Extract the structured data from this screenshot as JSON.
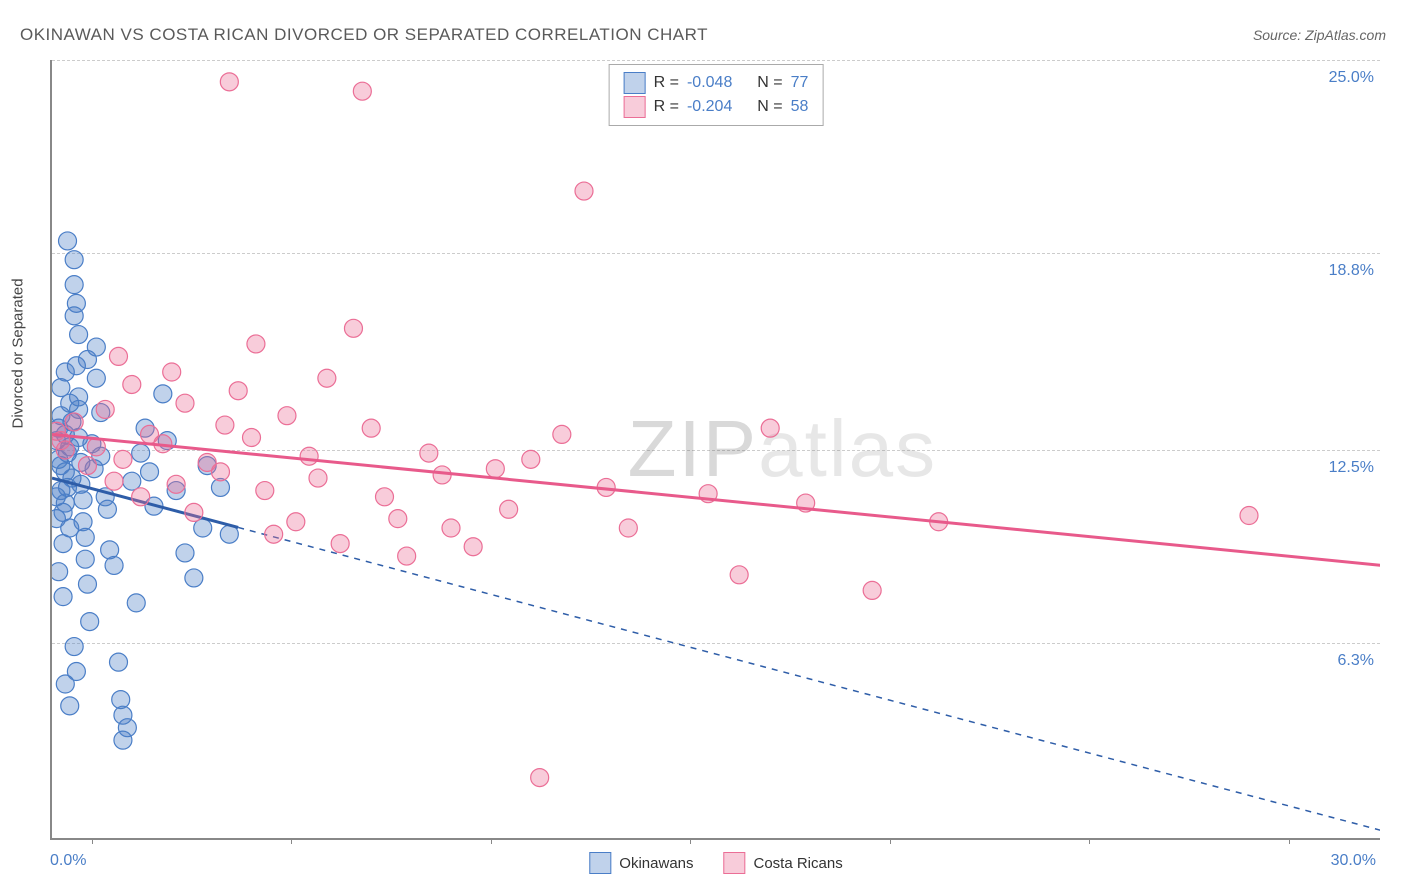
{
  "title": "OKINAWAN VS COSTA RICAN DIVORCED OR SEPARATED CORRELATION CHART",
  "source": "Source: ZipAtlas.com",
  "watermark_a": "ZIP",
  "watermark_b": "atlas",
  "ylabel": "Divorced or Separated",
  "chart": {
    "type": "scatter",
    "xlim": [
      0,
      30
    ],
    "ylim": [
      0,
      25
    ],
    "xtick_positions_pct": [
      3,
      18,
      33,
      48,
      63,
      78,
      93
    ],
    "grid_lines_y": [
      6.3,
      12.5,
      18.8,
      25.0
    ],
    "ytick_labels": [
      "6.3%",
      "12.5%",
      "18.8%",
      "25.0%"
    ],
    "xlabel_min": "0.0%",
    "xlabel_max": "30.0%",
    "background_color": "#ffffff",
    "grid_color": "#cccccc",
    "axis_color": "#888888",
    "marker_radius": 9,
    "marker_opacity": 0.55,
    "series": [
      {
        "name": "Okinawans",
        "color_fill": "rgba(74,126,199,0.35)",
        "color_stroke": "#4a7ec7",
        "R": "-0.048",
        "N": "77",
        "trend": {
          "x1": 0,
          "y1": 11.6,
          "x2": 30,
          "y2": 0.3,
          "solid_until_x": 4.2,
          "line_color": "#2e5da8",
          "line_width": 3
        },
        "points": [
          [
            0.1,
            12.8
          ],
          [
            0.1,
            11.0
          ],
          [
            0.1,
            10.3
          ],
          [
            0.15,
            13.2
          ],
          [
            0.15,
            12.2
          ],
          [
            0.2,
            14.5
          ],
          [
            0.2,
            13.6
          ],
          [
            0.2,
            12.0
          ],
          [
            0.2,
            11.2
          ],
          [
            0.25,
            10.5
          ],
          [
            0.25,
            9.5
          ],
          [
            0.3,
            15.0
          ],
          [
            0.3,
            13.0
          ],
          [
            0.3,
            11.8
          ],
          [
            0.3,
            10.8
          ],
          [
            0.35,
            12.4
          ],
          [
            0.35,
            11.3
          ],
          [
            0.4,
            14.0
          ],
          [
            0.4,
            12.6
          ],
          [
            0.4,
            10.0
          ],
          [
            0.45,
            13.4
          ],
          [
            0.45,
            11.6
          ],
          [
            0.5,
            18.6
          ],
          [
            0.5,
            17.8
          ],
          [
            0.5,
            16.8
          ],
          [
            0.55,
            17.2
          ],
          [
            0.55,
            15.2
          ],
          [
            0.6,
            14.2
          ],
          [
            0.6,
            13.8
          ],
          [
            0.6,
            12.9
          ],
          [
            0.65,
            12.1
          ],
          [
            0.65,
            11.4
          ],
          [
            0.7,
            10.9
          ],
          [
            0.7,
            10.2
          ],
          [
            0.75,
            9.7
          ],
          [
            0.75,
            9.0
          ],
          [
            0.8,
            8.2
          ],
          [
            0.85,
            7.0
          ],
          [
            0.9,
            12.7
          ],
          [
            0.95,
            11.9
          ],
          [
            1.0,
            15.8
          ],
          [
            1.0,
            14.8
          ],
          [
            1.1,
            13.7
          ],
          [
            1.1,
            12.3
          ],
          [
            1.2,
            11.0
          ],
          [
            1.25,
            10.6
          ],
          [
            1.3,
            9.3
          ],
          [
            1.4,
            8.8
          ],
          [
            1.5,
            5.7
          ],
          [
            1.55,
            4.5
          ],
          [
            1.6,
            4.0
          ],
          [
            1.6,
            3.2
          ],
          [
            1.7,
            3.6
          ],
          [
            1.8,
            11.5
          ],
          [
            1.9,
            7.6
          ],
          [
            2.0,
            12.4
          ],
          [
            2.1,
            13.2
          ],
          [
            2.2,
            11.8
          ],
          [
            2.3,
            10.7
          ],
          [
            2.5,
            14.3
          ],
          [
            2.6,
            12.8
          ],
          [
            2.8,
            11.2
          ],
          [
            3.0,
            9.2
          ],
          [
            3.2,
            8.4
          ],
          [
            3.4,
            10.0
          ],
          [
            3.5,
            12.0
          ],
          [
            3.8,
            11.3
          ],
          [
            4.0,
            9.8
          ],
          [
            0.3,
            5.0
          ],
          [
            0.4,
            4.3
          ],
          [
            0.35,
            19.2
          ],
          [
            0.6,
            16.2
          ],
          [
            0.8,
            15.4
          ],
          [
            0.15,
            8.6
          ],
          [
            0.25,
            7.8
          ],
          [
            0.5,
            6.2
          ],
          [
            0.55,
            5.4
          ]
        ]
      },
      {
        "name": "Costa Ricans",
        "color_fill": "rgba(235,110,150,0.35)",
        "color_stroke": "#eb6e96",
        "R": "-0.204",
        "N": "58",
        "trend": {
          "x1": 0,
          "y1": 13.0,
          "x2": 30,
          "y2": 8.8,
          "solid_until_x": 30,
          "line_color": "#e85a8b",
          "line_width": 3
        },
        "points": [
          [
            0.1,
            13.1
          ],
          [
            0.2,
            12.8
          ],
          [
            0.3,
            12.5
          ],
          [
            0.5,
            13.4
          ],
          [
            0.8,
            12.0
          ],
          [
            1.0,
            12.6
          ],
          [
            1.2,
            13.8
          ],
          [
            1.4,
            11.5
          ],
          [
            1.6,
            12.2
          ],
          [
            1.8,
            14.6
          ],
          [
            2.0,
            11.0
          ],
          [
            2.2,
            13.0
          ],
          [
            2.5,
            12.7
          ],
          [
            2.8,
            11.4
          ],
          [
            3.0,
            14.0
          ],
          [
            3.2,
            10.5
          ],
          [
            3.5,
            12.1
          ],
          [
            3.8,
            11.8
          ],
          [
            4.0,
            24.3
          ],
          [
            4.2,
            14.4
          ],
          [
            4.5,
            12.9
          ],
          [
            4.8,
            11.2
          ],
          [
            5.0,
            9.8
          ],
          [
            5.3,
            13.6
          ],
          [
            5.5,
            10.2
          ],
          [
            5.8,
            12.3
          ],
          [
            6.0,
            11.6
          ],
          [
            6.5,
            9.5
          ],
          [
            6.8,
            16.4
          ],
          [
            7.0,
            24.0
          ],
          [
            7.2,
            13.2
          ],
          [
            7.5,
            11.0
          ],
          [
            7.8,
            10.3
          ],
          [
            8.0,
            9.1
          ],
          [
            8.5,
            12.4
          ],
          [
            8.8,
            11.7
          ],
          [
            9.0,
            10.0
          ],
          [
            9.5,
            9.4
          ],
          [
            10.0,
            11.9
          ],
          [
            10.3,
            10.6
          ],
          [
            10.8,
            12.2
          ],
          [
            11.0,
            2.0
          ],
          [
            11.5,
            13.0
          ],
          [
            12.0,
            20.8
          ],
          [
            12.5,
            11.3
          ],
          [
            13.0,
            10.0
          ],
          [
            14.8,
            11.1
          ],
          [
            15.5,
            8.5
          ],
          [
            16.2,
            13.2
          ],
          [
            17.0,
            10.8
          ],
          [
            18.5,
            8.0
          ],
          [
            20.0,
            10.2
          ],
          [
            27.0,
            10.4
          ],
          [
            1.5,
            15.5
          ],
          [
            2.7,
            15.0
          ],
          [
            4.6,
            15.9
          ],
          [
            6.2,
            14.8
          ],
          [
            3.9,
            13.3
          ]
        ]
      }
    ],
    "legend_top": {
      "r_label": "R =",
      "n_label": "N ="
    },
    "legend_bottom": {
      "items": [
        "Okinawans",
        "Costa Ricans"
      ]
    }
  }
}
